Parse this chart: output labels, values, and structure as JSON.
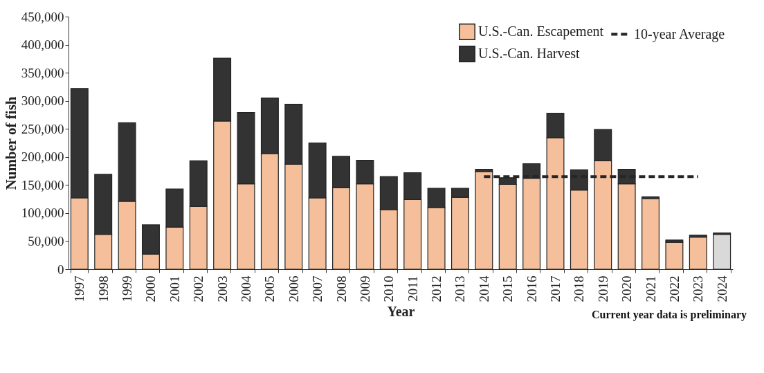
{
  "chart_data": {
    "type": "bar",
    "stacked": true,
    "xlabel": "Year",
    "ylabel": "Number of fish",
    "categories": [
      "1997",
      "1998",
      "1999",
      "2000",
      "2001",
      "2002",
      "2003",
      "2004",
      "2005",
      "2006",
      "2007",
      "2008",
      "2009",
      "2010",
      "2011",
      "2012",
      "2013",
      "2014",
      "2015",
      "2016",
      "2017",
      "2018",
      "2019",
      "2020",
      "2021",
      "2022",
      "2023",
      "2024"
    ],
    "series": [
      {
        "name": "U.S.-Can. Escapement",
        "color": "#f4bf9a",
        "values": [
          127000,
          62000,
          121000,
          27000,
          75000,
          112000,
          264000,
          152000,
          206000,
          187000,
          127000,
          145000,
          152000,
          106000,
          124000,
          110000,
          128000,
          174000,
          151000,
          162000,
          234000,
          141000,
          193000,
          152000,
          126000,
          48000,
          57000,
          null
        ]
      },
      {
        "color": "#d9d9d9",
        "values": [
          null,
          null,
          null,
          null,
          null,
          null,
          null,
          null,
          null,
          null,
          null,
          null,
          null,
          null,
          null,
          null,
          null,
          null,
          null,
          null,
          null,
          null,
          null,
          null,
          null,
          null,
          null,
          62000
        ]
      },
      {
        "name": "U.S.-Can. Harvest",
        "color": "#333333",
        "values": [
          195000,
          107000,
          140000,
          52000,
          68000,
          81000,
          112000,
          127000,
          99000,
          107000,
          98000,
          56000,
          42000,
          59000,
          48000,
          34000,
          16000,
          4000,
          12000,
          26000,
          44000,
          36000,
          56000,
          26000,
          3000,
          4000,
          3500,
          2500
        ]
      },
      {
        "name": "10-year Average",
        "type": "line",
        "line_style": "dashed",
        "color": "#262626",
        "values": [
          null,
          null,
          null,
          null,
          null,
          null,
          null,
          null,
          null,
          null,
          null,
          null,
          null,
          null,
          null,
          null,
          null,
          165000,
          165000,
          165000,
          165000,
          165000,
          165000,
          165000,
          165000,
          165000,
          165000,
          null
        ]
      }
    ],
    "ylim": [
      0,
      450000
    ],
    "yticks": [
      {
        "value": 0,
        "label": "0"
      },
      {
        "value": 50000,
        "label": "50,000"
      },
      {
        "value": 100000,
        "label": "100,000"
      },
      {
        "value": 150000,
        "label": "150,000"
      },
      {
        "value": 200000,
        "label": "200,000"
      },
      {
        "value": 250000,
        "label": "250,000"
      },
      {
        "value": 300000,
        "label": "300,000"
      },
      {
        "value": 350000,
        "label": "350,000"
      },
      {
        "value": 400000,
        "label": "400,000"
      },
      {
        "value": 450000,
        "label": "450,000"
      }
    ],
    "grid": false,
    "legend": "top right",
    "annotations": [
      "Current year data is preliminary"
    ]
  }
}
